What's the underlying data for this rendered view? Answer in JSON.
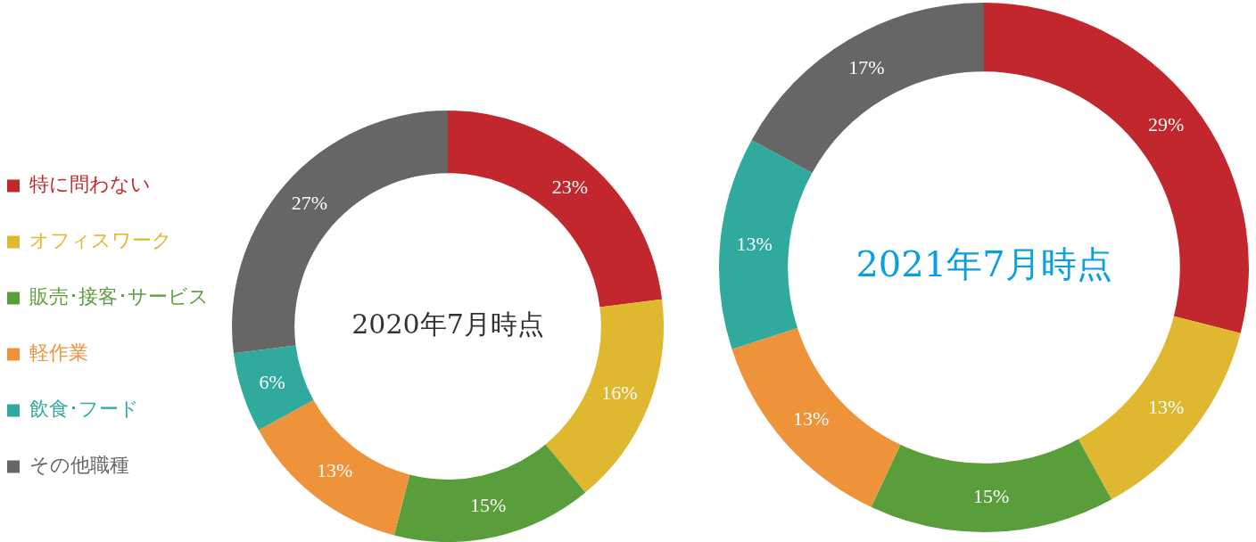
{
  "chart_data": [
    {
      "type": "donut",
      "title": "2020年7月時点",
      "categories": [
        "特に問わない",
        "オフィスワーク",
        "販売･接客･サービス",
        "軽作業",
        "飲食･フード",
        "その他職種"
      ],
      "values": [
        23,
        16,
        15,
        13,
        6,
        27
      ],
      "value_labels": [
        "23%",
        "16%",
        "15%",
        "13%",
        "6%",
        "27%"
      ],
      "colors": [
        "#c1272d",
        "#dfb830",
        "#5a9e3c",
        "#ee933a",
        "#31aa9e",
        "#666666"
      ],
      "legend": "left"
    },
    {
      "type": "donut",
      "title": "2021年7月時点",
      "categories": [
        null,
        null,
        null,
        null,
        null,
        null
      ],
      "values": [
        29,
        13,
        15,
        13,
        13,
        17
      ],
      "value_labels": [
        "29%",
        "13%",
        "15%",
        "13%",
        "13%",
        "17%"
      ],
      "colors": [
        "#c1272d",
        "#dfb830",
        "#5a9e3c",
        "#ee933a",
        "#31aa9e",
        "#666666"
      ]
    }
  ]
}
